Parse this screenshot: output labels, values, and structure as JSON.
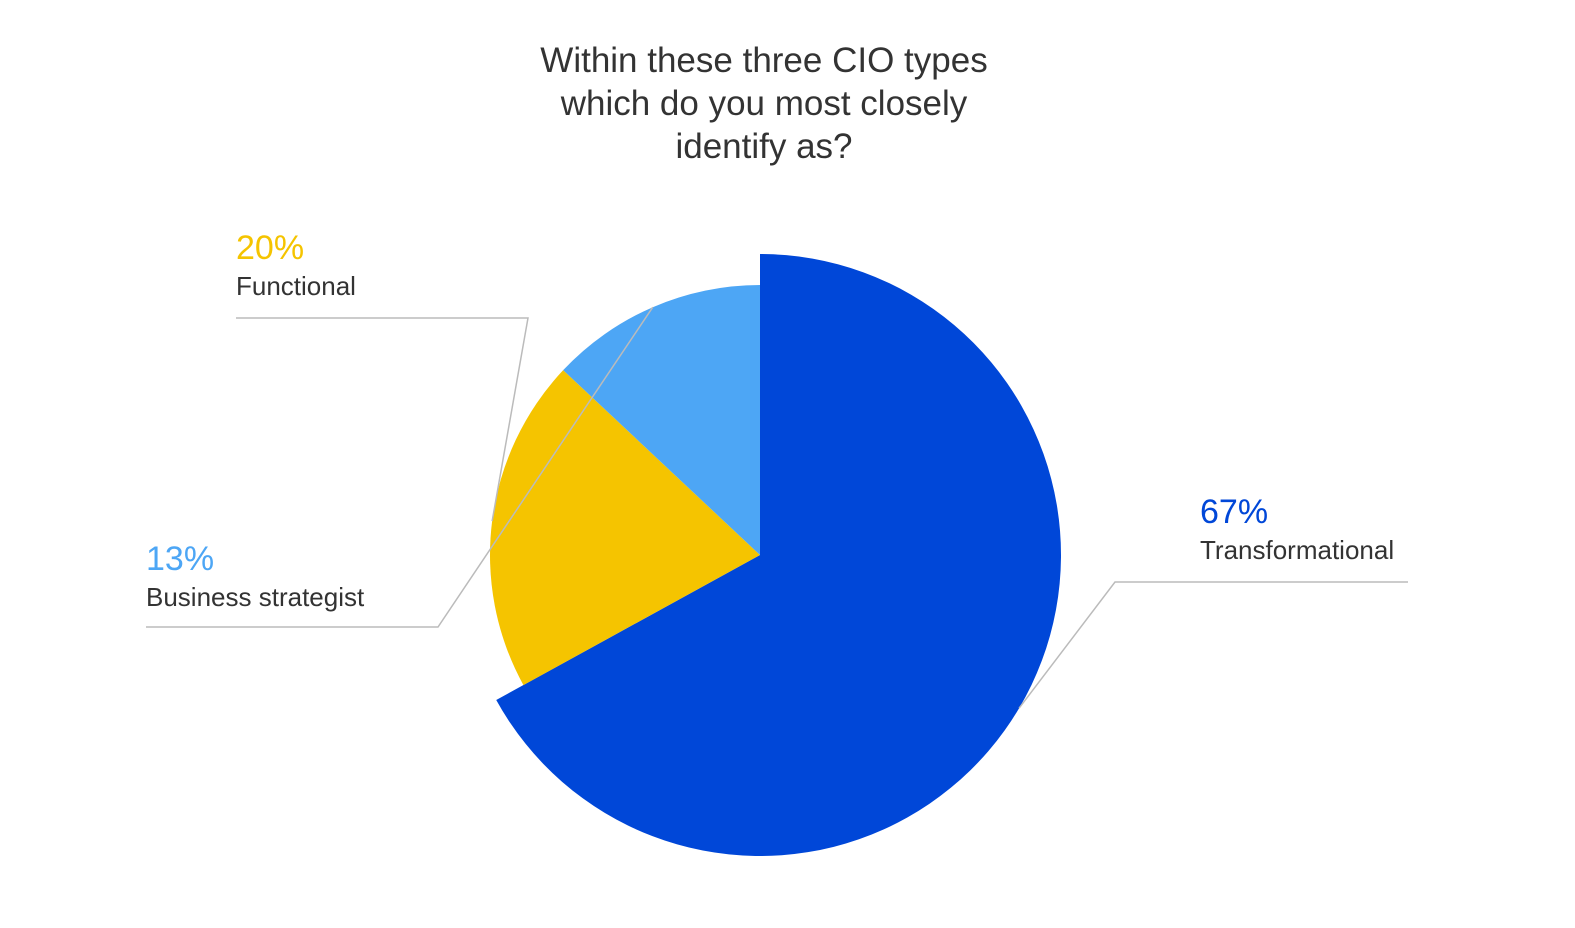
{
  "chart_data": {
    "type": "pie",
    "title": "Within these three CIO types which do you most closely identify as?",
    "title_lines": [
      "Within these three CIO types",
      "which do you most closely",
      "identify as?"
    ],
    "slices": [
      {
        "label": "Transformational",
        "value": 67,
        "value_label": "67%",
        "color": "#0047D8",
        "exploded": true
      },
      {
        "label": "Functional",
        "value": 20,
        "value_label": "20%",
        "color": "#F5C400",
        "exploded": false
      },
      {
        "label": "Business strategist",
        "value": 13,
        "value_label": "13%",
        "color": "#4DA6F5",
        "exploded": false
      }
    ],
    "legend": "none",
    "grid": false
  },
  "colors": {
    "title_text": "#333333",
    "label_text": "#333333",
    "leader_line": "#BBBBBB"
  }
}
